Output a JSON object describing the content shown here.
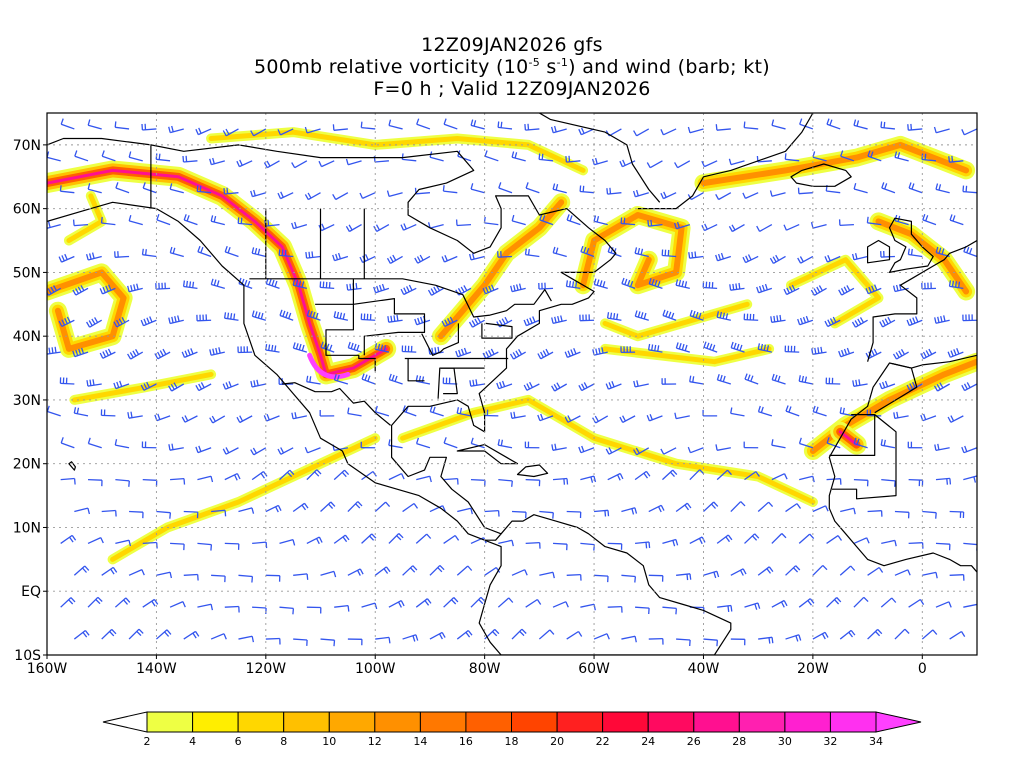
{
  "title": {
    "line1": "12Z09JAN2026 gfs",
    "line2_a": "500mb relative vorticity (10",
    "line2_exp1": "-5",
    "line2_b": " s",
    "line2_exp2": "-1",
    "line2_c": ") and wind (barb; kt)",
    "line3": "F=0 h ; Valid 12Z09JAN2026"
  },
  "map": {
    "projection": "cylindrical equidistant",
    "lon_range": [
      -160,
      10
    ],
    "lat_range": [
      -10,
      75
    ],
    "grid": "dotted",
    "lat_labels": [
      "70N",
      "60N",
      "50N",
      "40N",
      "30N",
      "20N",
      "10N",
      "EQ",
      "10S"
    ],
    "lon_labels": [
      "160W",
      "140W",
      "120W",
      "100W",
      "80W",
      "60W",
      "40W",
      "20W",
      "0"
    ],
    "barb_color": "#3355ee",
    "coastline_color": "#000000"
  },
  "colorbar": {
    "ticks": [
      "2",
      "4",
      "6",
      "8",
      "10",
      "12",
      "14",
      "16",
      "18",
      "20",
      "22",
      "24",
      "26",
      "28",
      "30",
      "32",
      "34"
    ],
    "colors": [
      "#eeff44",
      "#ffee00",
      "#ffd700",
      "#ffc000",
      "#ffa800",
      "#ff9000",
      "#ff7800",
      "#ff6000",
      "#ff4400",
      "#ff2020",
      "#ff0838",
      "#ff0a60",
      "#ff1090",
      "#ff20b0",
      "#ff20d0",
      "#ff30f0"
    ],
    "under_color": "#ffffff",
    "over_color": "#ff40ff"
  }
}
